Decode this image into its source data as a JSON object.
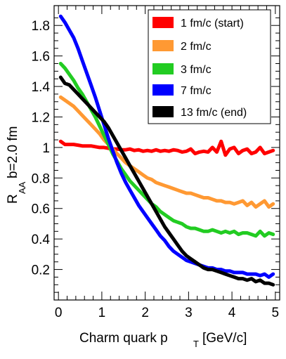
{
  "chart_data": {
    "type": "line",
    "xlabel_main": "Charm quark p",
    "xlabel_sub": "T",
    "xlabel_unit": "[GeV/c]",
    "ylabel_main": "R",
    "ylabel_sub": "AA",
    "ylabel_note": "b=2.0 fm",
    "xlim": [
      -0.1,
      5.1
    ],
    "ylim": [
      0.0,
      1.93
    ],
    "x_ticks": [
      0,
      1,
      2,
      3,
      4,
      5
    ],
    "x_tick_labels": [
      "0",
      "1",
      "2",
      "3",
      "4",
      "5"
    ],
    "y_ticks": [
      0.2,
      0.4,
      0.6,
      0.8,
      1.0,
      1.2,
      1.4,
      1.6,
      1.8
    ],
    "y_tick_labels": [
      "0.2",
      "0.4",
      "0.6",
      "0.8",
      "1",
      "1.2",
      "1.4",
      "1.6",
      "1.8"
    ],
    "grid": false,
    "legend_position": "top-right",
    "series": [
      {
        "name": "1 fm/c (start)",
        "color": "#ff0000",
        "x": [
          0.05,
          0.15,
          0.25,
          0.35,
          0.45,
          0.55,
          0.65,
          0.75,
          0.85,
          0.95,
          1.05,
          1.15,
          1.25,
          1.35,
          1.45,
          1.55,
          1.65,
          1.75,
          1.85,
          1.95,
          2.05,
          2.15,
          2.25,
          2.35,
          2.45,
          2.55,
          2.65,
          2.75,
          2.85,
          2.95,
          3.05,
          3.15,
          3.25,
          3.35,
          3.45,
          3.55,
          3.65,
          3.75,
          3.85,
          3.95,
          4.05,
          4.15,
          4.25,
          4.35,
          4.45,
          4.55,
          4.65,
          4.75,
          4.85,
          4.95
        ],
        "y": [
          1.04,
          1.02,
          1.02,
          1.02,
          1.015,
          1.01,
          1.01,
          1.01,
          1.005,
          1.0,
          1.0,
          0.995,
          0.99,
          0.99,
          0.985,
          0.985,
          0.99,
          0.98,
          0.985,
          0.975,
          0.98,
          0.975,
          0.985,
          0.975,
          0.98,
          0.975,
          0.985,
          0.98,
          0.97,
          0.975,
          0.99,
          0.96,
          0.97,
          0.975,
          0.97,
          1.0,
          0.97,
          1.04,
          0.95,
          0.99,
          1.0,
          0.96,
          0.98,
          0.99,
          0.96,
          0.97,
          1.0,
          0.96,
          0.97,
          0.98
        ]
      },
      {
        "name": "2 fm/c",
        "color": "#ff9933",
        "x": [
          0.05,
          0.15,
          0.25,
          0.35,
          0.45,
          0.55,
          0.65,
          0.75,
          0.85,
          0.95,
          1.05,
          1.15,
          1.25,
          1.35,
          1.45,
          1.55,
          1.65,
          1.75,
          1.85,
          1.95,
          2.05,
          2.15,
          2.25,
          2.35,
          2.45,
          2.55,
          2.65,
          2.75,
          2.85,
          2.95,
          3.05,
          3.15,
          3.25,
          3.35,
          3.45,
          3.55,
          3.65,
          3.75,
          3.85,
          3.95,
          4.05,
          4.15,
          4.25,
          4.35,
          4.45,
          4.55,
          4.65,
          4.75,
          4.85,
          4.95
        ],
        "y": [
          1.33,
          1.31,
          1.29,
          1.27,
          1.24,
          1.21,
          1.18,
          1.15,
          1.12,
          1.09,
          1.05,
          1.02,
          0.99,
          0.96,
          0.93,
          0.9,
          0.88,
          0.86,
          0.84,
          0.82,
          0.8,
          0.79,
          0.77,
          0.76,
          0.75,
          0.74,
          0.73,
          0.72,
          0.71,
          0.7,
          0.7,
          0.69,
          0.68,
          0.67,
          0.67,
          0.66,
          0.65,
          0.65,
          0.64,
          0.64,
          0.63,
          0.64,
          0.65,
          0.62,
          0.64,
          0.61,
          0.63,
          0.65,
          0.61,
          0.63
        ]
      },
      {
        "name": "3 fm/c",
        "color": "#22cc22",
        "x": [
          0.05,
          0.15,
          0.25,
          0.35,
          0.45,
          0.55,
          0.65,
          0.75,
          0.85,
          0.95,
          1.05,
          1.15,
          1.25,
          1.35,
          1.45,
          1.55,
          1.65,
          1.75,
          1.85,
          1.95,
          2.05,
          2.15,
          2.25,
          2.35,
          2.45,
          2.55,
          2.65,
          2.75,
          2.85,
          2.95,
          3.05,
          3.15,
          3.25,
          3.35,
          3.45,
          3.55,
          3.65,
          3.75,
          3.85,
          3.95,
          4.05,
          4.15,
          4.25,
          4.35,
          4.45,
          4.55,
          4.65,
          4.75,
          4.85,
          4.95
        ],
        "y": [
          1.55,
          1.52,
          1.48,
          1.44,
          1.39,
          1.35,
          1.3,
          1.25,
          1.2,
          1.14,
          1.08,
          1.02,
          0.96,
          0.91,
          0.86,
          0.82,
          0.78,
          0.75,
          0.72,
          0.69,
          0.66,
          0.63,
          0.61,
          0.58,
          0.56,
          0.54,
          0.52,
          0.51,
          0.5,
          0.48,
          0.47,
          0.47,
          0.46,
          0.45,
          0.45,
          0.46,
          0.45,
          0.44,
          0.45,
          0.44,
          0.45,
          0.43,
          0.44,
          0.44,
          0.43,
          0.42,
          0.45,
          0.42,
          0.44,
          0.43
        ]
      },
      {
        "name": "7 fm/c",
        "color": "#0000ff",
        "x": [
          0.05,
          0.15,
          0.25,
          0.35,
          0.45,
          0.55,
          0.65,
          0.75,
          0.85,
          0.95,
          1.05,
          1.15,
          1.25,
          1.35,
          1.45,
          1.55,
          1.65,
          1.75,
          1.85,
          1.95,
          2.05,
          2.15,
          2.25,
          2.35,
          2.45,
          2.55,
          2.65,
          2.75,
          2.85,
          2.95,
          3.05,
          3.15,
          3.25,
          3.35,
          3.45,
          3.55,
          3.65,
          3.75,
          3.85,
          3.95,
          4.05,
          4.15,
          4.25,
          4.35,
          4.45,
          4.55,
          4.65,
          4.75,
          4.85,
          4.95
        ],
        "y": [
          1.86,
          1.82,
          1.77,
          1.72,
          1.65,
          1.57,
          1.49,
          1.41,
          1.33,
          1.24,
          1.15,
          1.06,
          0.98,
          0.9,
          0.83,
          0.77,
          0.72,
          0.67,
          0.62,
          0.58,
          0.54,
          0.5,
          0.46,
          0.42,
          0.39,
          0.35,
          0.32,
          0.3,
          0.28,
          0.26,
          0.25,
          0.24,
          0.23,
          0.22,
          0.21,
          0.21,
          0.2,
          0.2,
          0.19,
          0.19,
          0.18,
          0.18,
          0.18,
          0.17,
          0.17,
          0.17,
          0.16,
          0.17,
          0.15,
          0.17
        ]
      },
      {
        "name": "13 fm/c (end)",
        "color": "#000000",
        "x": [
          0.05,
          0.15,
          0.25,
          0.35,
          0.45,
          0.55,
          0.65,
          0.75,
          0.85,
          0.95,
          1.05,
          1.15,
          1.25,
          1.35,
          1.45,
          1.55,
          1.65,
          1.75,
          1.85,
          1.95,
          2.05,
          2.15,
          2.25,
          2.35,
          2.45,
          2.55,
          2.65,
          2.75,
          2.85,
          2.95,
          3.05,
          3.15,
          3.25,
          3.35,
          3.45,
          3.55,
          3.65,
          3.75,
          3.85,
          3.95,
          4.05,
          4.15,
          4.25,
          4.35,
          4.45,
          4.55,
          4.65,
          4.75,
          4.85,
          4.95
        ],
        "y": [
          1.46,
          1.42,
          1.41,
          1.38,
          1.35,
          1.32,
          1.29,
          1.26,
          1.23,
          1.2,
          1.17,
          1.13,
          1.08,
          1.03,
          0.98,
          0.93,
          0.88,
          0.83,
          0.78,
          0.73,
          0.68,
          0.63,
          0.58,
          0.53,
          0.48,
          0.44,
          0.4,
          0.36,
          0.32,
          0.29,
          0.27,
          0.25,
          0.23,
          0.21,
          0.2,
          0.2,
          0.19,
          0.18,
          0.17,
          0.16,
          0.15,
          0.14,
          0.14,
          0.13,
          0.14,
          0.12,
          0.13,
          0.11,
          0.11,
          0.1
        ]
      }
    ]
  }
}
